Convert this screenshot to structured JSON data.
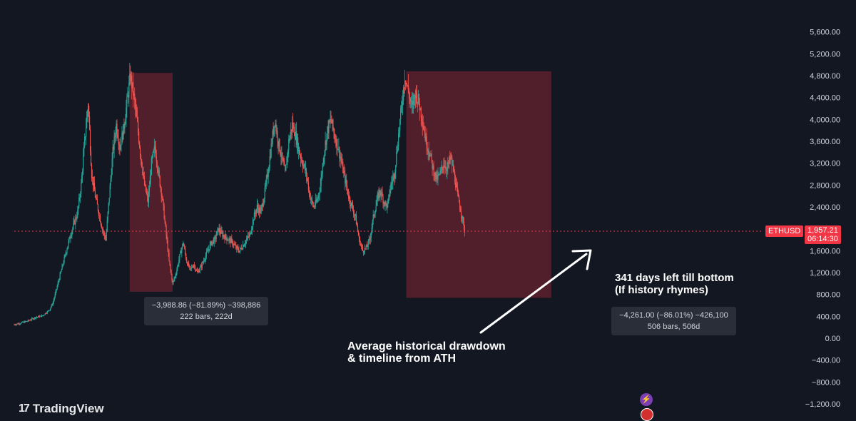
{
  "branding": {
    "logo_mark": "17",
    "logo_text": "TradingView"
  },
  "ticker": {
    "symbol": "ETHUSD",
    "last_price": "1,957.21",
    "countdown": "06:14:30"
  },
  "stat_boxes": [
    {
      "line1": "−3,988.86 (−81.89%) −398,886",
      "line2": "222 bars, 222d"
    },
    {
      "line1": "−4,261.00 (−86.01%) −426,100",
      "line2": "506 bars, 506d"
    }
  ],
  "annotations": [
    {
      "lines": [
        "341 days left till bottom",
        "(If history rhymes)"
      ]
    },
    {
      "lines": [
        "Average historical drawdown",
        "& timeline from ATH"
      ]
    }
  ],
  "colors": {
    "background": "#131722",
    "up": "#26a69a",
    "down": "#ef5350",
    "zone": "#f23645",
    "axis_text": "#d1d4dc",
    "grid": "#1e222d",
    "price_line": "#f23645"
  },
  "icons": [
    "purple-lightning-icon",
    "flag-icon"
  ],
  "chart_data": {
    "type": "candlestick",
    "symbol": "ETHUSD",
    "ylim": [
      -1200,
      6000
    ],
    "y_ticks": [
      "5,600.00",
      "5,200.00",
      "4,800.00",
      "4,400.00",
      "4,000.00",
      "3,600.00",
      "3,200.00",
      "2,800.00",
      "2,400.00",
      "1,600.00",
      "1,200.00",
      "800.00",
      "400.00",
      "0.00",
      "−400.00",
      "−800.00",
      "−1,200.00"
    ],
    "y_tick_values": [
      5600,
      5200,
      4800,
      4400,
      4000,
      3600,
      3200,
      2800,
      2400,
      1600,
      1200,
      800,
      400,
      0,
      -400,
      -800,
      -1200
    ],
    "current_price": 1957.21,
    "price_path": [
      [
        0,
        250
      ],
      [
        10,
        280
      ],
      [
        20,
        320
      ],
      [
        30,
        380
      ],
      [
        40,
        410
      ],
      [
        50,
        520
      ],
      [
        55,
        650
      ],
      [
        60,
        900
      ],
      [
        70,
        1400
      ],
      [
        80,
        1900
      ],
      [
        90,
        2300
      ],
      [
        95,
        2800
      ],
      [
        100,
        3600
      ],
      [
        105,
        4300
      ],
      [
        110,
        3000
      ],
      [
        115,
        2600
      ],
      [
        120,
        2300
      ],
      [
        125,
        2000
      ],
      [
        130,
        1800
      ],
      [
        135,
        2600
      ],
      [
        140,
        3400
      ],
      [
        145,
        3900
      ],
      [
        150,
        3500
      ],
      [
        155,
        3800
      ],
      [
        160,
        4300
      ],
      [
        165,
        4800
      ],
      [
        170,
        4400
      ],
      [
        175,
        3900
      ],
      [
        180,
        3300
      ],
      [
        185,
        2800
      ],
      [
        190,
        2500
      ],
      [
        195,
        3200
      ],
      [
        200,
        3500
      ],
      [
        205,
        3000
      ],
      [
        210,
        2600
      ],
      [
        215,
        2000
      ],
      [
        220,
        1400
      ],
      [
        225,
        1000
      ],
      [
        230,
        1200
      ],
      [
        235,
        1500
      ],
      [
        240,
        1750
      ],
      [
        245,
        1400
      ],
      [
        250,
        1250
      ],
      [
        255,
        1350
      ],
      [
        260,
        1200
      ],
      [
        265,
        1300
      ],
      [
        270,
        1450
      ],
      [
        275,
        1600
      ],
      [
        280,
        1750
      ],
      [
        285,
        1800
      ],
      [
        290,
        2000
      ],
      [
        295,
        1900
      ],
      [
        300,
        1850
      ],
      [
        305,
        1800
      ],
      [
        310,
        1750
      ],
      [
        315,
        1650
      ],
      [
        320,
        1600
      ],
      [
        325,
        1700
      ],
      [
        330,
        1800
      ],
      [
        335,
        1900
      ],
      [
        340,
        2200
      ],
      [
        345,
        2400
      ],
      [
        350,
        2300
      ],
      [
        355,
        2600
      ],
      [
        360,
        3000
      ],
      [
        365,
        3500
      ],
      [
        370,
        4000
      ],
      [
        375,
        3600
      ],
      [
        380,
        3300
      ],
      [
        385,
        3000
      ],
      [
        390,
        3600
      ],
      [
        395,
        3900
      ],
      [
        400,
        3700
      ],
      [
        405,
        3400
      ],
      [
        410,
        3200
      ],
      [
        415,
        3000
      ],
      [
        420,
        2600
      ],
      [
        425,
        2400
      ],
      [
        430,
        2500
      ],
      [
        435,
        2800
      ],
      [
        440,
        3400
      ],
      [
        445,
        3800
      ],
      [
        450,
        4000
      ],
      [
        455,
        3700
      ],
      [
        460,
        3500
      ],
      [
        465,
        3200
      ],
      [
        470,
        2900
      ],
      [
        475,
        2600
      ],
      [
        480,
        2400
      ],
      [
        485,
        2200
      ],
      [
        490,
        1800
      ],
      [
        495,
        1600
      ],
      [
        500,
        1650
      ],
      [
        505,
        1800
      ],
      [
        510,
        2200
      ],
      [
        515,
        2500
      ],
      [
        520,
        2700
      ],
      [
        525,
        2500
      ],
      [
        530,
        2400
      ],
      [
        535,
        2800
      ],
      [
        540,
        3000
      ],
      [
        545,
        3600
      ],
      [
        550,
        4200
      ],
      [
        555,
        4800
      ],
      [
        560,
        4500
      ],
      [
        565,
        4200
      ],
      [
        570,
        4500
      ],
      [
        575,
        4300
      ],
      [
        580,
        4000
      ],
      [
        585,
        3600
      ],
      [
        590,
        3400
      ],
      [
        595,
        3100
      ],
      [
        600,
        2900
      ],
      [
        605,
        3000
      ],
      [
        610,
        3200
      ],
      [
        615,
        3100
      ],
      [
        620,
        3300
      ],
      [
        625,
        3000
      ],
      [
        630,
        2600
      ],
      [
        635,
        2300
      ],
      [
        640,
        1957
      ]
    ],
    "zones": [
      {
        "label": "drawdown-1",
        "x_start": 164,
        "x_end": 225,
        "y_top": 4850,
        "y_bottom": 850
      },
      {
        "label": "drawdown-2",
        "x_start": 557,
        "x_end": 763,
        "y_top": 4880,
        "y_bottom": 740
      }
    ],
    "grid": false
  }
}
